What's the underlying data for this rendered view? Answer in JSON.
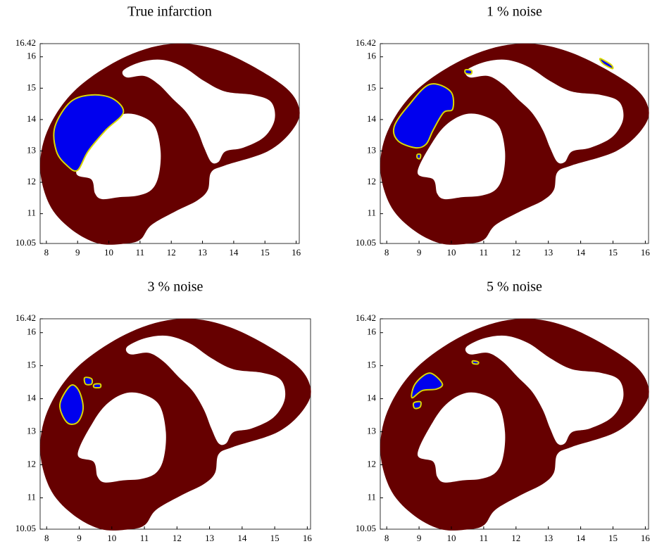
{
  "chart_data": [
    {
      "type": "region",
      "title": "True infarction",
      "xlim": [
        7.8,
        16.1
      ],
      "ylim": [
        10.05,
        16.42
      ],
      "xticks": [
        8,
        9,
        10,
        11,
        12,
        13,
        14,
        15,
        16
      ],
      "yticks": [
        10.05,
        11,
        12,
        13,
        14,
        15,
        16,
        16.42
      ]
    },
    {
      "type": "region",
      "title": "1 % noise",
      "xlim": [
        7.8,
        16.1
      ],
      "ylim": [
        10.05,
        16.42
      ],
      "xticks": [
        8,
        9,
        10,
        11,
        12,
        13,
        14,
        15,
        16
      ],
      "yticks": [
        10.05,
        11,
        12,
        13,
        14,
        15,
        16,
        16.42
      ]
    },
    {
      "type": "region",
      "title": "3 % noise",
      "xlim": [
        7.8,
        16.1
      ],
      "ylim": [
        10.05,
        16.42
      ],
      "xticks": [
        8,
        9,
        10,
        11,
        12,
        13,
        14,
        15,
        16
      ],
      "yticks": [
        10.05,
        11,
        12,
        13,
        14,
        15,
        16,
        16.42
      ]
    },
    {
      "type": "region",
      "title": "5 % noise",
      "xlim": [
        7.8,
        16.1
      ],
      "ylim": [
        10.05,
        16.42
      ],
      "xticks": [
        8,
        9,
        10,
        11,
        12,
        13,
        14,
        15,
        16
      ],
      "yticks": [
        10.05,
        11,
        12,
        13,
        14,
        15,
        16,
        16.42
      ]
    }
  ]
}
